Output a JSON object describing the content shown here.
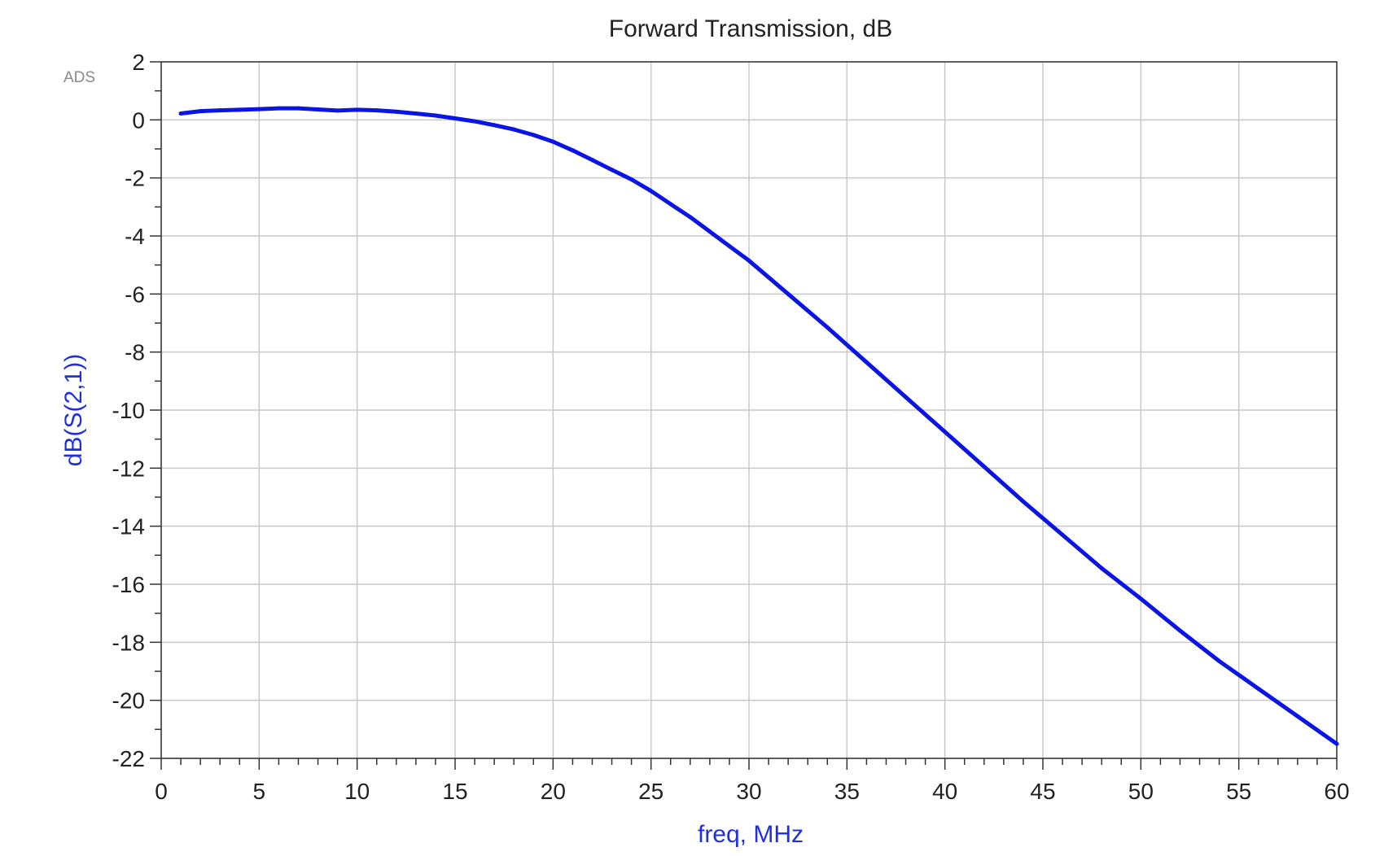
{
  "logo": "ADS",
  "chart_data": {
    "type": "line",
    "title": "Forward Transmission, dB",
    "xlabel": "freq, MHz",
    "ylabel": "dB(S(2,1))",
    "xlim": [
      0,
      60
    ],
    "ylim": [
      -22,
      2
    ],
    "xticks": [
      0,
      5,
      10,
      15,
      20,
      25,
      30,
      35,
      40,
      45,
      50,
      55,
      60
    ],
    "yticks": [
      2,
      0,
      -2,
      -4,
      -6,
      -8,
      -10,
      -12,
      -14,
      -16,
      -18,
      -20,
      -22
    ],
    "grid": true,
    "colors": {
      "series": "#0a14e6",
      "label": "#1f2fe0",
      "grid": "#c8c8c8",
      "frame": "#333333"
    },
    "series": [
      {
        "x": [
          1,
          2,
          3,
          4,
          5,
          6,
          7,
          8,
          9,
          10,
          11,
          12,
          13,
          14,
          15,
          16,
          17,
          18,
          19,
          20,
          21,
          22,
          23,
          24,
          25,
          26,
          27,
          28,
          29,
          30,
          32,
          34,
          36,
          38,
          40,
          42,
          44,
          46,
          48,
          50,
          52,
          54,
          56,
          58,
          60
        ],
        "y": [
          0.22,
          0.3,
          0.33,
          0.35,
          0.37,
          0.4,
          0.4,
          0.36,
          0.32,
          0.35,
          0.33,
          0.28,
          0.22,
          0.15,
          0.05,
          -0.05,
          -0.18,
          -0.33,
          -0.52,
          -0.75,
          -1.05,
          -1.38,
          -1.72,
          -2.05,
          -2.45,
          -2.9,
          -3.35,
          -3.85,
          -4.35,
          -4.85,
          -6.0,
          -7.15,
          -8.35,
          -9.55,
          -10.75,
          -11.95,
          -13.15,
          -14.3,
          -15.45,
          -16.5,
          -17.6,
          -18.65,
          -19.6,
          -20.55,
          -21.5
        ]
      }
    ]
  }
}
